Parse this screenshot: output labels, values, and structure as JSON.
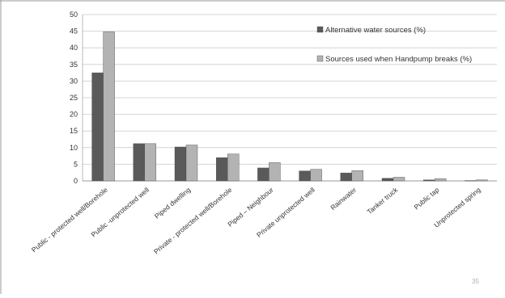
{
  "chart_data": {
    "type": "bar",
    "categories": [
      "Public - protected well/Borehole",
      "Public -unprotected well",
      "Piped dwelling",
      "Private - protected well/Borehole",
      "Piped – Neighbour",
      "Private unprotected well",
      "Rainwater",
      "Tanker truck",
      "Public tap",
      "Unprotected spring"
    ],
    "series": [
      {
        "name": "Alternative water sources (%)",
        "color": "#5a5a5a",
        "values": [
          32.5,
          11.2,
          10.2,
          7.0,
          3.9,
          3.0,
          2.4,
          0.8,
          0.3,
          0.1
        ]
      },
      {
        "name": "Sources used when Handpump breaks (%)",
        "color": "#b3b3b3",
        "values": [
          44.8,
          11.2,
          10.8,
          8.1,
          5.5,
          3.5,
          3.1,
          1.1,
          0.7,
          0.3
        ]
      }
    ],
    "title": "",
    "xlabel": "",
    "ylabel": "",
    "ylim": [
      0,
      50
    ],
    "yticks": [
      "0",
      "5",
      "10",
      "15",
      "20",
      "25",
      "30",
      "35",
      "40",
      "45",
      "50"
    ],
    "grid": true,
    "legend_position": "top-right"
  },
  "page_number": "35"
}
